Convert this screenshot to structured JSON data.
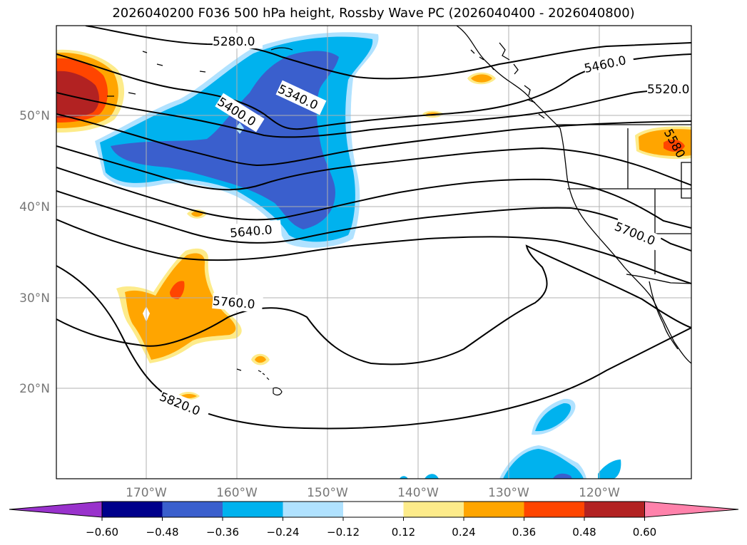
{
  "title": "2026040200 F036 500 hPa height, Rossby Wave PC (2026040400 - 2026040800)",
  "map": {
    "lat_labels": [
      "50°N",
      "40°N",
      "30°N",
      "20°N"
    ],
    "lon_labels": [
      "170°W",
      "160°W",
      "150°W",
      "140°W",
      "130°W",
      "120°W"
    ],
    "contour_labels": [
      "5280.0",
      "5340.0",
      "5400.0",
      "5460.0",
      "5520.0",
      "5580",
      "5640.0",
      "5700.0",
      "5760.0",
      "5820.0"
    ]
  },
  "colorbar": {
    "ticks": [
      "−0.60",
      "−0.48",
      "−0.36",
      "−0.24",
      "−0.12",
      "0.12",
      "0.24",
      "0.36",
      "0.48",
      "0.60"
    ],
    "colors": [
      "#9932cc",
      "#00008b",
      "#3a5fcd",
      "#00b2ee",
      "#b0e2ff",
      "#ffffff",
      "#fdeb8a",
      "#ffa500",
      "#ff4500",
      "#b22222",
      "#ff82ab"
    ]
  }
}
